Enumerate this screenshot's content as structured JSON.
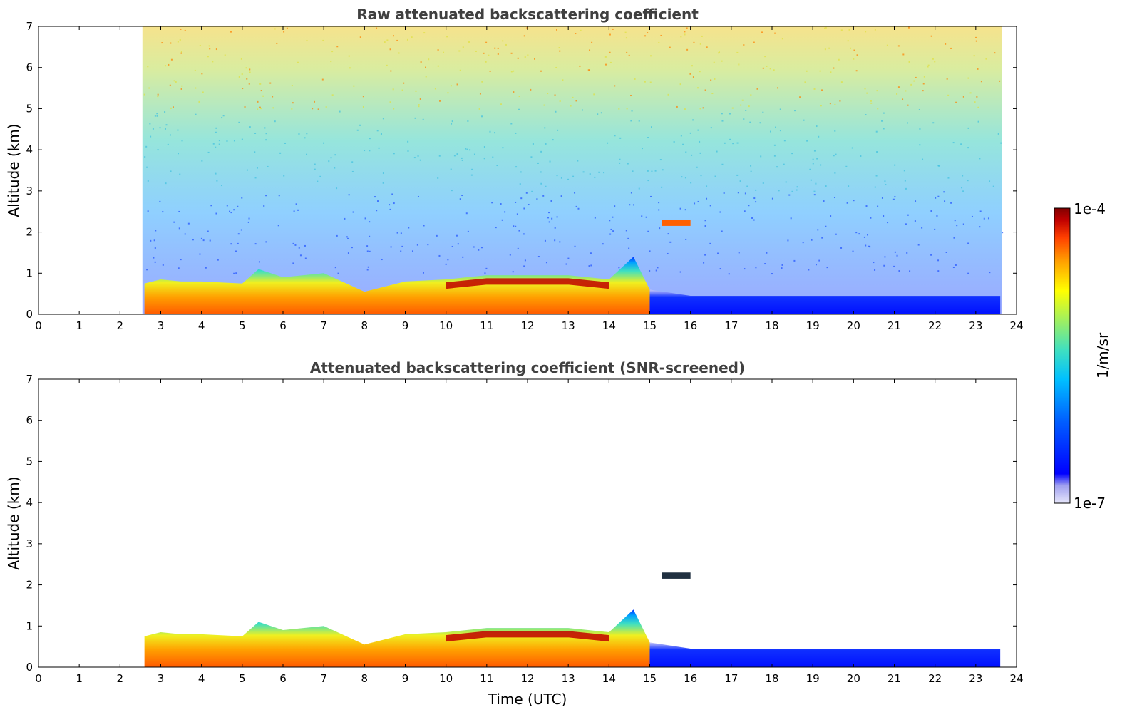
{
  "chart_data": [
    {
      "type": "heatmap",
      "title": "Raw attenuated backscattering coefficient",
      "xlabel": "",
      "ylabel": "Altitude (km)",
      "xlim": [
        0,
        24
      ],
      "ylim": [
        0,
        7
      ],
      "x_ticks": [
        "0",
        "1",
        "2",
        "3",
        "4",
        "5",
        "6",
        "7",
        "8",
        "9",
        "10",
        "11",
        "12",
        "13",
        "14",
        "15",
        "16",
        "17",
        "18",
        "19",
        "20",
        "21",
        "22",
        "23",
        "24"
      ],
      "y_ticks": [
        "0",
        "1",
        "2",
        "3",
        "4",
        "5",
        "6",
        "7"
      ],
      "data_extent_hours": [
        2.55,
        23.65
      ],
      "boundary_layer_top_km": [
        {
          "t": 2.6,
          "h": 0.75
        },
        {
          "t": 3.0,
          "h": 0.85
        },
        {
          "t": 3.5,
          "h": 0.8
        },
        {
          "t": 4.0,
          "h": 0.8
        },
        {
          "t": 5.0,
          "h": 0.75
        },
        {
          "t": 5.4,
          "h": 1.1
        },
        {
          "t": 6.0,
          "h": 0.9
        },
        {
          "t": 7.0,
          "h": 1.0
        },
        {
          "t": 8.0,
          "h": 0.55
        },
        {
          "t": 9.0,
          "h": 0.8
        },
        {
          "t": 10.0,
          "h": 0.85
        },
        {
          "t": 11.0,
          "h": 0.95
        },
        {
          "t": 12.0,
          "h": 0.95
        },
        {
          "t": 13.0,
          "h": 0.95
        },
        {
          "t": 14.0,
          "h": 0.85
        },
        {
          "t": 14.6,
          "h": 1.4
        },
        {
          "t": 15.0,
          "h": 0.6
        },
        {
          "t": 16.0,
          "h": 0.45
        },
        {
          "t": 20.0,
          "h": 0.45
        },
        {
          "t": 23.6,
          "h": 0.45
        }
      ],
      "features": [
        "aerosol layer 2.2 km near 15.5-16 UTC",
        "noisy background up to 7 km"
      ]
    },
    {
      "type": "heatmap",
      "title": "Attenuated backscattering coefficient (SNR-screened)",
      "xlabel": "Time (UTC)",
      "ylabel": "Altitude (km)",
      "xlim": [
        0,
        24
      ],
      "ylim": [
        0,
        7
      ],
      "x_ticks": [
        "0",
        "1",
        "2",
        "3",
        "4",
        "5",
        "6",
        "7",
        "8",
        "9",
        "10",
        "11",
        "12",
        "13",
        "14",
        "15",
        "16",
        "17",
        "18",
        "19",
        "20",
        "21",
        "22",
        "23",
        "24"
      ],
      "y_ticks": [
        "0",
        "1",
        "2",
        "3",
        "4",
        "5",
        "6",
        "7"
      ],
      "data_extent_hours": [
        2.55,
        23.65
      ],
      "boundary_layer_top_km": [
        {
          "t": 2.6,
          "h": 0.75
        },
        {
          "t": 3.0,
          "h": 0.85
        },
        {
          "t": 3.5,
          "h": 0.8
        },
        {
          "t": 4.0,
          "h": 0.8
        },
        {
          "t": 5.0,
          "h": 0.75
        },
        {
          "t": 5.4,
          "h": 1.1
        },
        {
          "t": 6.0,
          "h": 0.9
        },
        {
          "t": 7.0,
          "h": 1.0
        },
        {
          "t": 8.0,
          "h": 0.55
        },
        {
          "t": 9.0,
          "h": 0.8
        },
        {
          "t": 10.0,
          "h": 0.85
        },
        {
          "t": 11.0,
          "h": 0.95
        },
        {
          "t": 12.0,
          "h": 0.95
        },
        {
          "t": 13.0,
          "h": 0.95
        },
        {
          "t": 14.0,
          "h": 0.85
        },
        {
          "t": 14.6,
          "h": 1.4
        },
        {
          "t": 15.0,
          "h": 0.6
        },
        {
          "t": 16.0,
          "h": 0.45
        },
        {
          "t": 20.0,
          "h": 0.45
        },
        {
          "t": 23.6,
          "h": 0.45
        }
      ],
      "features": [
        "aerosol layer 2.2 km near 15.5-16 UTC"
      ]
    }
  ],
  "colorbar": {
    "label": "1/m/sr",
    "max_label": "1e-4",
    "min_label": "1e-7",
    "colormap": [
      "#e6e6fa",
      "#a0a0f0",
      "#0000ff",
      "#0060ff",
      "#00c0ff",
      "#40e0c0",
      "#a0f060",
      "#ffff00",
      "#ffa000",
      "#ff4000",
      "#c00000",
      "#800000"
    ]
  },
  "colors": {
    "title": "#404040",
    "axis": "#000000"
  }
}
